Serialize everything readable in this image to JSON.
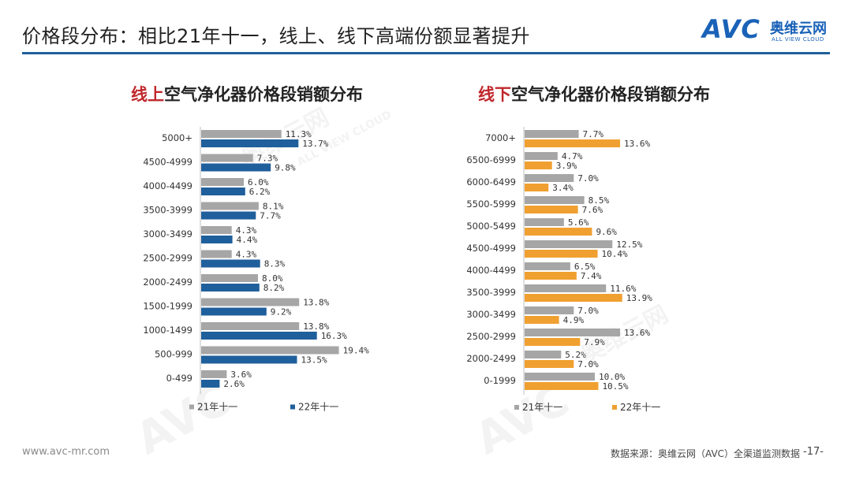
{
  "header": {
    "title": "价格段分布：相比21年十一，线上、线下高端份额显著提升",
    "logo_avc": "AVC",
    "logo_cn": "奥维云网",
    "logo_en": "ALL VIEW CLOUD"
  },
  "watermark": {
    "cn": "奥维云网",
    "en": "ALL VIEW CLOUD",
    "avc": "AVC"
  },
  "chart_data": [
    {
      "type": "bar",
      "orientation": "horizontal",
      "title_highlight": "线上",
      "title_rest": "空气净化器价格段销额分布",
      "categories": [
        "5000+",
        "4500-4999",
        "4000-4499",
        "3500-3999",
        "3000-3499",
        "2500-2999",
        "2000-2499",
        "1500-1999",
        "1000-1499",
        "500-999",
        "0-499"
      ],
      "series": [
        {
          "name": "21年十一",
          "color": "#a6a6a6",
          "values": [
            11.3,
            7.3,
            6.0,
            8.1,
            4.3,
            4.3,
            8.0,
            13.8,
            13.8,
            19.4,
            3.6
          ],
          "labels": [
            "11.3%",
            "7.3%",
            "6.0%",
            "8.1%",
            "4.3%",
            "4.3%",
            "8.0%",
            "13.8%",
            "13.8%",
            "19.4%",
            "3.6%"
          ]
        },
        {
          "name": "22年十一",
          "color": "#1f5f9c",
          "values": [
            13.7,
            9.8,
            6.2,
            7.7,
            4.4,
            8.3,
            8.2,
            9.2,
            16.3,
            13.5,
            2.6
          ],
          "labels": [
            "13.7%",
            "9.8%",
            "6.2%",
            "7.7%",
            "4.4%",
            "8.3%",
            "8.2%",
            "9.2%",
            "16.3%",
            "13.5%",
            "2.6%"
          ]
        }
      ],
      "legend_position": "bottom"
    },
    {
      "type": "bar",
      "orientation": "horizontal",
      "title_highlight": "线下",
      "title_rest": "空气净化器价格段销额分布",
      "categories": [
        "7000+",
        "6500-6999",
        "6000-6499",
        "5500-5999",
        "5000-5499",
        "4500-4999",
        "4000-4499",
        "3500-3999",
        "3000-3499",
        "2500-2999",
        "2000-2499",
        "0-1999"
      ],
      "series": [
        {
          "name": "21年十一",
          "color": "#a6a6a6",
          "values": [
            7.7,
            4.7,
            7.0,
            8.5,
            5.6,
            12.5,
            6.5,
            11.6,
            7.0,
            13.6,
            5.2,
            10.0
          ],
          "labels": [
            "7.7%",
            "4.7%",
            "7.0%",
            "8.5%",
            "5.6%",
            "12.5%",
            "6.5%",
            "11.6%",
            "7.0%",
            "13.6%",
            "5.2%",
            "10.0%"
          ]
        },
        {
          "name": "22年十一",
          "color": "#f0a030",
          "values": [
            13.6,
            3.9,
            3.4,
            7.6,
            9.6,
            10.4,
            7.4,
            13.9,
            4.9,
            7.9,
            7.0,
            10.5
          ],
          "labels": [
            "13.6%",
            "3.9%",
            "3.4%",
            "7.6%",
            "9.6%",
            "10.4%",
            "7.4%",
            "13.9%",
            "4.9%",
            "7.9%",
            "7.0%",
            "10.5%"
          ]
        }
      ],
      "legend_position": "bottom"
    }
  ],
  "footer": {
    "url": "www.avc-mr.com",
    "source": "数据来源：奥维云网（AVC）全渠道监测数据",
    "page": "-17-"
  }
}
